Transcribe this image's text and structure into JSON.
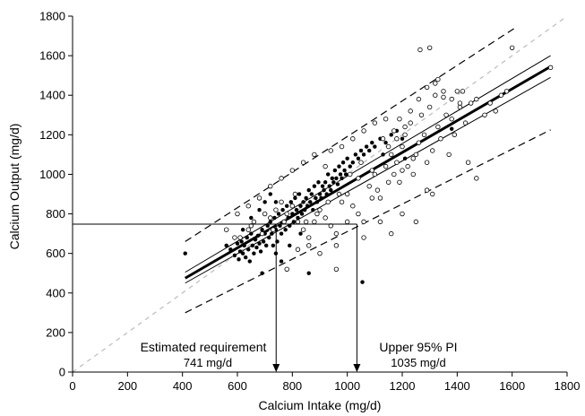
{
  "chart_data": {
    "type": "scatter",
    "xlabel": "Calcium Intake (mg/d)",
    "ylabel": "Calcium Output (mg/d)",
    "xlim": [
      0,
      1800
    ],
    "ylim": [
      0,
      1800
    ],
    "xticks": [
      0,
      200,
      400,
      600,
      800,
      1000,
      1200,
      1400,
      1600,
      1800
    ],
    "yticks": [
      0,
      200,
      400,
      600,
      800,
      1000,
      1200,
      1400,
      1600,
      1800
    ],
    "grid": false,
    "series": [
      {
        "marker": "filled-circle",
        "points": [
          [
            410,
            600
          ],
          [
            560,
            640
          ],
          [
            575,
            620
          ],
          [
            590,
            590
          ],
          [
            600,
            650
          ],
          [
            605,
            570
          ],
          [
            610,
            610
          ],
          [
            615,
            660
          ],
          [
            620,
            600
          ],
          [
            625,
            640
          ],
          [
            630,
            580
          ],
          [
            635,
            680
          ],
          [
            640,
            620
          ],
          [
            645,
            560
          ],
          [
            650,
            700
          ],
          [
            655,
            640
          ],
          [
            660,
            600
          ],
          [
            665,
            670
          ],
          [
            670,
            630
          ],
          [
            675,
            690
          ],
          [
            680,
            650
          ],
          [
            685,
            610
          ],
          [
            690,
            720
          ],
          [
            695,
            660
          ],
          [
            700,
            700
          ],
          [
            705,
            640
          ],
          [
            710,
            740
          ],
          [
            715,
            680
          ],
          [
            720,
            760
          ],
          [
            725,
            700
          ],
          [
            730,
            640
          ],
          [
            735,
            780
          ],
          [
            740,
            720
          ],
          [
            745,
            660
          ],
          [
            750,
            800
          ],
          [
            755,
            740
          ],
          [
            760,
            700
          ],
          [
            765,
            820
          ],
          [
            770,
            760
          ],
          [
            775,
            720
          ],
          [
            780,
            840
          ],
          [
            785,
            780
          ],
          [
            790,
            740
          ],
          [
            795,
            860
          ],
          [
            800,
            800
          ],
          [
            805,
            760
          ],
          [
            810,
            880
          ],
          [
            815,
            820
          ],
          [
            820,
            780
          ],
          [
            825,
            900
          ],
          [
            830,
            840
          ],
          [
            835,
            800
          ],
          [
            840,
            860
          ],
          [
            845,
            820
          ],
          [
            850,
            880
          ],
          [
            855,
            840
          ],
          [
            860,
            920
          ],
          [
            865,
            860
          ],
          [
            870,
            900
          ],
          [
            875,
            820
          ],
          [
            880,
            940
          ],
          [
            885,
            880
          ],
          [
            890,
            860
          ],
          [
            895,
            960
          ],
          [
            900,
            900
          ],
          [
            905,
            880
          ],
          [
            910,
            940
          ],
          [
            915,
            920
          ],
          [
            920,
            960
          ],
          [
            925,
            900
          ],
          [
            930,
            1000
          ],
          [
            935,
            940
          ],
          [
            940,
            920
          ],
          [
            945,
            980
          ],
          [
            950,
            960
          ],
          [
            955,
            1020
          ],
          [
            960,
            980
          ],
          [
            965,
            950
          ],
          [
            970,
            1040
          ],
          [
            975,
            1000
          ],
          [
            980,
            980
          ],
          [
            985,
            1060
          ],
          [
            990,
            1020
          ],
          [
            995,
            1000
          ],
          [
            1000,
            1080
          ],
          [
            1010,
            1040
          ],
          [
            1020,
            1060
          ],
          [
            1030,
            1100
          ],
          [
            1040,
            1080
          ],
          [
            1050,
            1120
          ],
          [
            1060,
            1100
          ],
          [
            1070,
            1140
          ],
          [
            1080,
            1120
          ],
          [
            1090,
            1160
          ],
          [
            1100,
            1140
          ],
          [
            1120,
            1180
          ],
          [
            1140,
            1160
          ],
          [
            1160,
            1200
          ],
          [
            1180,
            1220
          ],
          [
            1200,
            1180
          ],
          [
            690,
            500
          ],
          [
            740,
            600
          ],
          [
            790,
            640
          ],
          [
            860,
            500
          ],
          [
            740,
            860
          ],
          [
            700,
            860
          ],
          [
            720,
            900
          ],
          [
            680,
            820
          ],
          [
            620,
            720
          ],
          [
            650,
            780
          ],
          [
            1055,
            455
          ],
          [
            1130,
            1100
          ],
          [
            1210,
            1080
          ],
          [
            1380,
            1230
          ],
          [
            760,
            560
          ],
          [
            830,
            700
          ]
        ]
      },
      {
        "marker": "open-circle",
        "points": [
          [
            590,
            680
          ],
          [
            640,
            720
          ],
          [
            660,
            760
          ],
          [
            700,
            800
          ],
          [
            720,
            780
          ],
          [
            740,
            820
          ],
          [
            760,
            860
          ],
          [
            780,
            800
          ],
          [
            800,
            840
          ],
          [
            820,
            760
          ],
          [
            840,
            720
          ],
          [
            860,
            680
          ],
          [
            880,
            760
          ],
          [
            900,
            820
          ],
          [
            920,
            780
          ],
          [
            940,
            740
          ],
          [
            960,
            700
          ],
          [
            980,
            860
          ],
          [
            1000,
            900
          ],
          [
            1020,
            840
          ],
          [
            1040,
            800
          ],
          [
            1060,
            760
          ],
          [
            1080,
            940
          ],
          [
            1100,
            1000
          ],
          [
            1110,
            920
          ],
          [
            1120,
            880
          ],
          [
            1140,
            1040
          ],
          [
            1150,
            960
          ],
          [
            1160,
            1100
          ],
          [
            1170,
            1000
          ],
          [
            1180,
            1060
          ],
          [
            1190,
            960
          ],
          [
            1200,
            1140
          ],
          [
            1210,
            1200
          ],
          [
            1220,
            1040
          ],
          [
            1230,
            1260
          ],
          [
            1240,
            1000
          ],
          [
            1250,
            1100
          ],
          [
            1260,
            1160
          ],
          [
            1270,
            1300
          ],
          [
            1280,
            1200
          ],
          [
            1290,
            1060
          ],
          [
            1300,
            1340
          ],
          [
            1310,
            1120
          ],
          [
            1320,
            1400
          ],
          [
            1330,
            1240
          ],
          [
            1340,
            1180
          ],
          [
            1350,
            1420
          ],
          [
            1360,
            1300
          ],
          [
            1370,
            1100
          ],
          [
            1380,
            1380
          ],
          [
            1390,
            1200
          ],
          [
            1400,
            1420
          ],
          [
            1410,
            1340
          ],
          [
            1420,
            1420
          ],
          [
            1430,
            1260
          ],
          [
            1450,
            1360
          ],
          [
            1470,
            1380
          ],
          [
            1500,
            1300
          ],
          [
            1520,
            1360
          ],
          [
            1540,
            1320
          ],
          [
            1560,
            1400
          ],
          [
            1580,
            1420
          ],
          [
            1600,
            1640
          ],
          [
            1740,
            1540
          ],
          [
            1265,
            1630
          ],
          [
            1300,
            1640
          ],
          [
            1330,
            1480
          ],
          [
            1440,
            1060
          ],
          [
            1470,
            980
          ],
          [
            1040,
            980
          ],
          [
            1000,
            760
          ],
          [
            960,
            640
          ],
          [
            900,
            600
          ],
          [
            860,
            640
          ],
          [
            820,
            620
          ],
          [
            780,
            520
          ],
          [
            960,
            520
          ],
          [
            1060,
            680
          ],
          [
            1120,
            760
          ],
          [
            1160,
            700
          ],
          [
            1200,
            800
          ],
          [
            1250,
            760
          ],
          [
            1290,
            920
          ],
          [
            1310,
            900
          ],
          [
            1090,
            880
          ],
          [
            1130,
            1180
          ],
          [
            1170,
            1220
          ],
          [
            1190,
            1280
          ],
          [
            1230,
            1320
          ],
          [
            1260,
            1380
          ],
          [
            1290,
            1440
          ],
          [
            1320,
            1460
          ],
          [
            1350,
            1390
          ],
          [
            1380,
            1280
          ],
          [
            1410,
            1360
          ],
          [
            1240,
            1080
          ],
          [
            1200,
            1020
          ],
          [
            1150,
            1140
          ],
          [
            1090,
            1020
          ],
          [
            1050,
            1060
          ],
          [
            1010,
            1000
          ],
          [
            970,
            900
          ],
          [
            930,
            860
          ],
          [
            890,
            800
          ],
          [
            850,
            760
          ],
          [
            810,
            900
          ],
          [
            770,
            760
          ],
          [
            730,
            720
          ],
          [
            690,
            700
          ],
          [
            650,
            740
          ],
          [
            610,
            680
          ],
          [
            560,
            720
          ],
          [
            600,
            800
          ],
          [
            640,
            840
          ],
          [
            680,
            880
          ],
          [
            720,
            940
          ],
          [
            760,
            980
          ],
          [
            800,
            1020
          ],
          [
            840,
            1060
          ],
          [
            880,
            1100
          ],
          [
            920,
            1040
          ],
          [
            940,
            1120
          ],
          [
            980,
            1140
          ],
          [
            1020,
            1180
          ],
          [
            1060,
            1220
          ],
          [
            1100,
            1260
          ],
          [
            1140,
            1280
          ],
          [
            1180,
            1180
          ],
          [
            1210,
            1240
          ]
        ]
      }
    ],
    "lines": [
      {
        "style": "regression",
        "points": [
          [
            410,
            475
          ],
          [
            1740,
            1545
          ]
        ]
      },
      {
        "style": "ci-upper",
        "points": [
          [
            410,
            505
          ],
          [
            1740,
            1600
          ]
        ]
      },
      {
        "style": "ci-lower",
        "points": [
          [
            410,
            450
          ],
          [
            1740,
            1490
          ]
        ]
      },
      {
        "style": "pi-upper",
        "points": [
          [
            410,
            660
          ],
          [
            1610,
            1740
          ]
        ]
      },
      {
        "style": "pi-lower",
        "points": [
          [
            410,
            300
          ],
          [
            1740,
            1225
          ]
        ]
      },
      {
        "style": "identity",
        "points": [
          [
            0,
            0
          ],
          [
            1790,
            1790
          ]
        ]
      }
    ],
    "reference": {
      "y": 748,
      "x_start": 0,
      "requirement_x": 741,
      "upper_pi_x": 1035
    },
    "annotations": [
      {
        "id": "estimated",
        "label": "Estimated requirement",
        "value": "741 mg/d"
      },
      {
        "id": "upper",
        "label": "Upper 95% PI",
        "value": "1035 mg/d"
      }
    ]
  }
}
